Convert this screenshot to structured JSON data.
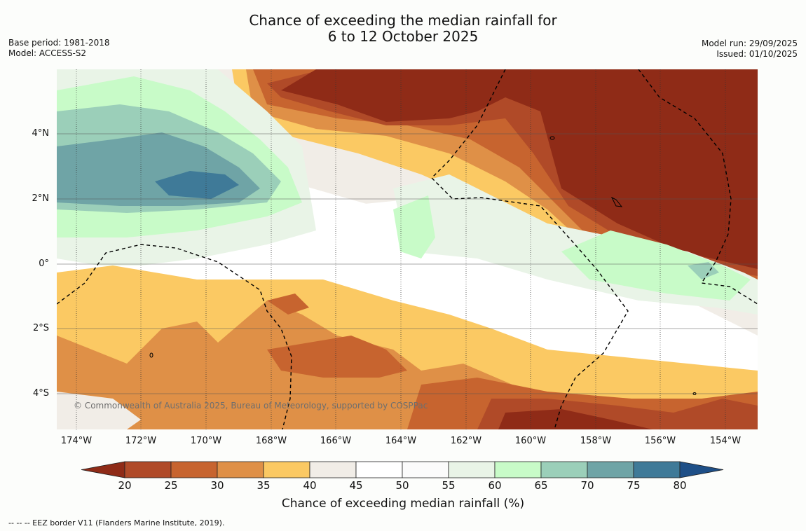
{
  "title": {
    "line1": "Chance of exceeding the median rainfall for",
    "line2": "6 to 12 October 2025"
  },
  "meta": {
    "base_period": "Base period: 1981-2018",
    "model": "Model: ACCESS-S2",
    "model_run": "Model run: 29/09/2025",
    "issued": "Issued: 01/10/2025"
  },
  "map": {
    "longitude_labels": [
      "174°W",
      "172°W",
      "170°W",
      "168°W",
      "166°W",
      "164°W",
      "162°W",
      "160°W",
      "158°W",
      "156°W",
      "154°W"
    ],
    "latitude_labels": [
      "4°N",
      "2°N",
      "0°",
      "2°S",
      "4°S"
    ],
    "copyright": "© Commonwealth of Australia 2025, Bureau of Meteorology, supported by COSPPac"
  },
  "colorbar": {
    "title": "Chance of exceeding median rainfall (%)",
    "ticks": [
      "20",
      "25",
      "30",
      "35",
      "40",
      "45",
      "50",
      "55",
      "60",
      "65",
      "70",
      "75",
      "80"
    ],
    "colors": [
      "#8f2b17",
      "#b04a28",
      "#c7642f",
      "#df9047",
      "#fbc963",
      "#f1ede7",
      "#ffffff",
      "#fbfbfb",
      "#e9f4e7",
      "#c8fbc8",
      "#9bcfb9",
      "#6fa4a6",
      "#3f7a98",
      "#1e4f87"
    ]
  },
  "footnote": "--  --  -- EEZ border V11 (Flanders Marine Institute, 2019)."
}
